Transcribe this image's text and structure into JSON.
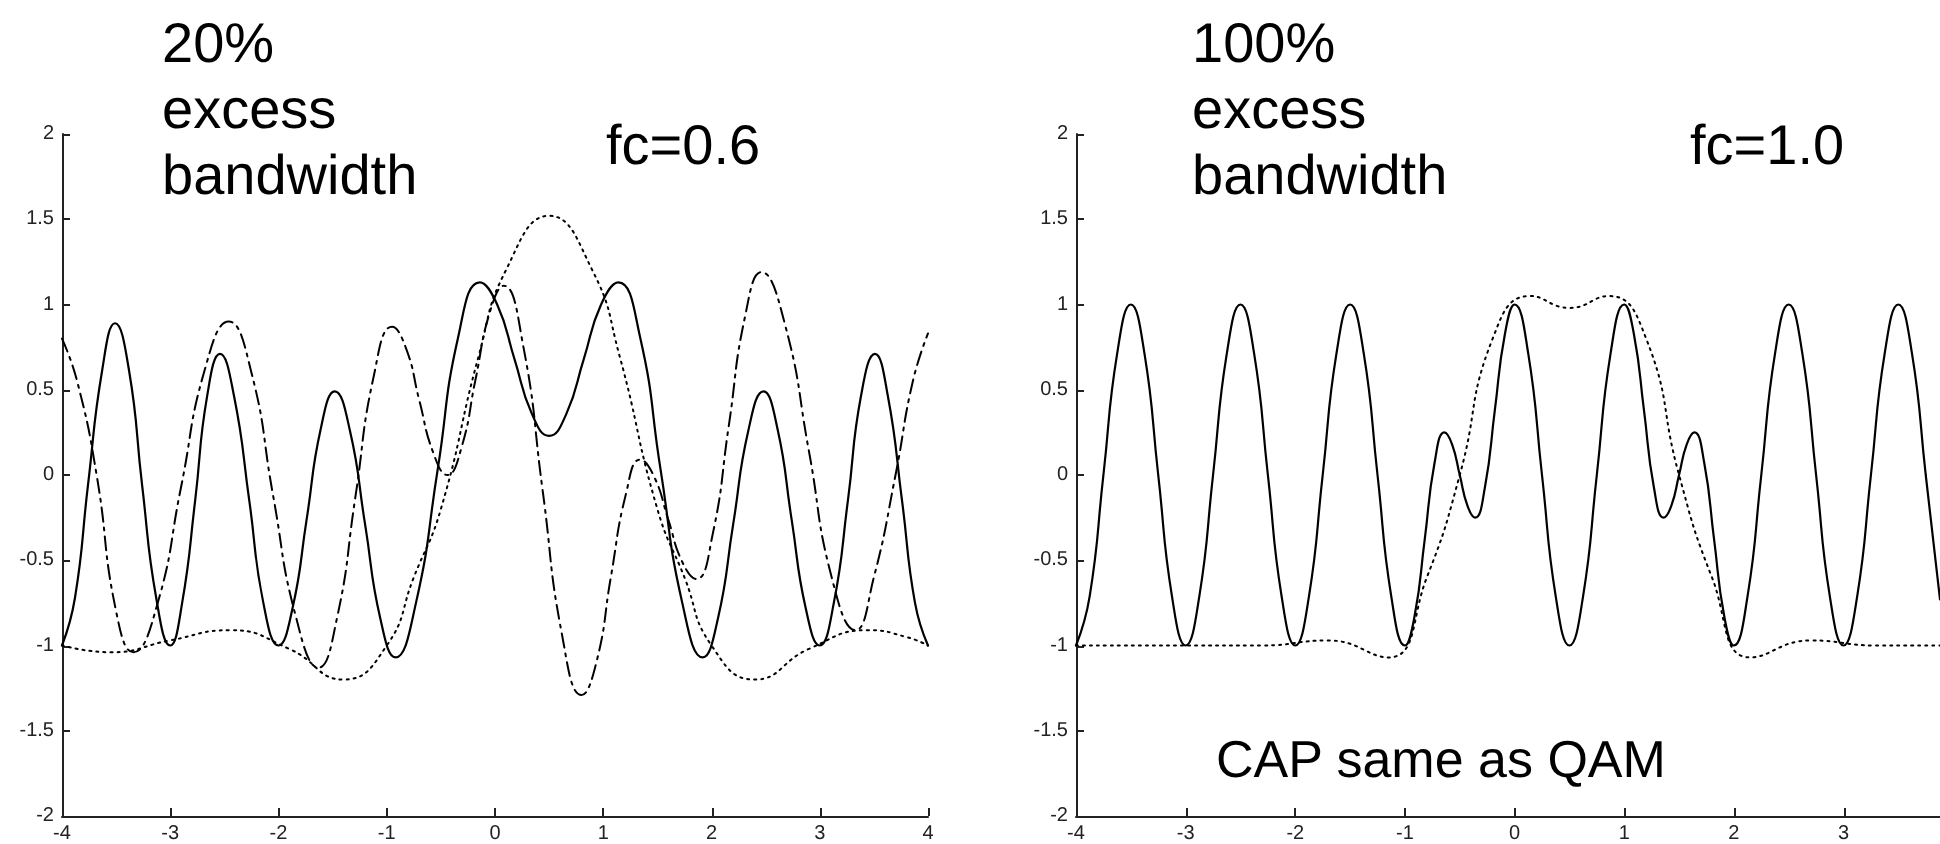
{
  "chart_data": [
    {
      "type": "line",
      "annotations": [
        "20% excess bandwidth",
        "fc=0.6"
      ],
      "xlim": [
        -4,
        4
      ],
      "ylim": [
        -2,
        2
      ],
      "xticks": [
        -4,
        -3,
        -2,
        -1,
        0,
        1,
        2,
        3,
        4
      ],
      "yticks": [
        -2,
        -1.5,
        -1,
        -0.5,
        0,
        0.5,
        1,
        1.5,
        2
      ],
      "series": [
        {
          "color": "#000000",
          "line_style": "solid",
          "x": [
            -4,
            -3.88,
            -3.76,
            -3.63,
            -3.51,
            -3.38,
            -3.26,
            -3.13,
            -3,
            -2.89,
            -2.77,
            -2.66,
            -2.54,
            -2.41,
            -2.27,
            -2.14,
            -2,
            -1.87,
            -1.74,
            -1.61,
            -1.48,
            -1.34,
            -1.2,
            -1.06,
            -0.92,
            -0.73,
            -0.53,
            -0.34,
            -0.14,
            0.02,
            0.18,
            0.34,
            0.5,
            0.66,
            0.82,
            0.98,
            1.14,
            1.34,
            1.53,
            1.73,
            1.92,
            2.06,
            2.2,
            2.34,
            2.48,
            2.61,
            2.74,
            2.87,
            3,
            3.13,
            3.26,
            3.38,
            3.51,
            3.63,
            3.76,
            3.88,
            4
          ],
          "values": [
            -1,
            -0.72,
            -0.06,
            0.61,
            0.89,
            0.61,
            -0.06,
            -0.72,
            -1,
            -0.75,
            -0.15,
            0.46,
            0.71,
            0.46,
            -0.15,
            -0.75,
            -1,
            -0.78,
            -0.26,
            0.27,
            0.49,
            0.26,
            -0.29,
            -0.84,
            -1.07,
            -0.75,
            0.03,
            0.81,
            1.13,
            1,
            0.68,
            0.36,
            0.23,
            0.36,
            0.68,
            1,
            1.13,
            0.81,
            0.03,
            -0.75,
            -1.07,
            -0.84,
            -0.29,
            0.26,
            0.49,
            0.27,
            -0.26,
            -0.78,
            -1,
            -0.75,
            -0.15,
            0.46,
            0.71,
            0.46,
            -0.15,
            -0.75,
            -1
          ]
        },
        {
          "color": "#000000",
          "line_style": "dashdot",
          "x": [
            -4,
            -3.86,
            -3.68,
            -3.5,
            -3.34,
            -3.12,
            -2.9,
            -2.68,
            -2.46,
            -2.25,
            -2.05,
            -1.84,
            -1.63,
            -1.46,
            -1.29,
            -1.12,
            -0.95,
            -0.82,
            -0.7,
            -0.57,
            -0.44,
            -0.31,
            -0.18,
            -0.05,
            0.08,
            0.26,
            0.44,
            0.62,
            0.8,
            0.94,
            1.07,
            1.21,
            1.34,
            1.47,
            1.6,
            1.73,
            1.86,
            2.01,
            2.16,
            2.31,
            2.46,
            2.68,
            2.9,
            3.11,
            3.33,
            3.5,
            3.7,
            3.86,
            4
          ],
          "values": [
            0.8,
            0.55,
            0,
            -0.8,
            -1.04,
            -0.76,
            -0.07,
            0.62,
            0.9,
            0.6,
            -0.12,
            -0.83,
            -1.13,
            -0.84,
            -0.13,
            0.58,
            0.87,
            0.74,
            0.44,
            0.13,
            0,
            0.16,
            0.56,
            0.95,
            1.11,
            0.76,
            -0.09,
            -0.94,
            -1.29,
            -1.09,
            -0.6,
            -0.11,
            0.09,
            -0.01,
            -0.26,
            -0.51,
            -0.61,
            -0.35,
            0.29,
            0.93,
            1.19,
            0.88,
            0.14,
            -0.6,
            -0.91,
            -0.6,
            0,
            0.55,
            0.83
          ]
        },
        {
          "color": "#000000",
          "line_style": "dotted",
          "x": [
            -4,
            -3.55,
            -3,
            -2.45,
            -1.9,
            -1.4,
            -1,
            -0.75,
            -0.5,
            -0.15,
            0.1,
            0.5,
            0.9,
            1.15,
            1.5,
            1.75,
            2,
            2.4,
            2.9,
            3.45,
            3.8,
            4
          ],
          "values": [
            -1,
            -1.04,
            -0.97,
            -0.91,
            -1.02,
            -1.2,
            -1,
            -0.6,
            -0.2,
            0.7,
            1.2,
            1.52,
            1.2,
            0.7,
            -0.2,
            -0.6,
            -1,
            -1.2,
            -1.02,
            -0.91,
            -0.95,
            -1
          ]
        }
      ]
    },
    {
      "type": "line",
      "annotations": [
        "100% excess bandwidth",
        "fc=1.0",
        "CAP same as QAM"
      ],
      "xlim": [
        -4,
        3.88
      ],
      "ylim": [
        -2,
        2
      ],
      "xticks": [
        -4,
        -3,
        -2,
        -1,
        0,
        1,
        2,
        3
      ],
      "yticks": [
        -2,
        -1.5,
        -1,
        -0.5,
        0,
        0.5,
        1,
        1.5,
        2
      ],
      "series": [
        {
          "color": "#000000",
          "line_style": "solid",
          "x": [
            -4,
            -3.875,
            -3.75,
            -3.625,
            -3.5,
            -3.375,
            -3.25,
            -3.125,
            -3,
            -2.875,
            -2.75,
            -2.625,
            -2.5,
            -2.375,
            -2.25,
            -2.125,
            -2,
            -1.875,
            -1.75,
            -1.625,
            -1.5,
            -1.375,
            -1.25,
            -1.125,
            -1,
            -0.91,
            -0.82,
            -0.73,
            -0.64,
            -0.57,
            -0.5,
            -0.43,
            -0.36,
            -0.27,
            -0.18,
            -0.09,
            0,
            0.125,
            0.25,
            0.375,
            0.5,
            0.625,
            0.75,
            0.875,
            1,
            1.09,
            1.18,
            1.27,
            1.36,
            1.43,
            1.5,
            1.57,
            1.64,
            1.73,
            1.82,
            1.91,
            2,
            2.125,
            2.25,
            2.375,
            2.5,
            2.625,
            2.75,
            2.875,
            3,
            3.125,
            3.25,
            3.375,
            3.5,
            3.625,
            3.75,
            3.88
          ],
          "values": [
            -1,
            -0.71,
            0,
            0.71,
            1,
            0.71,
            0,
            -0.71,
            -1,
            -0.71,
            0,
            0.71,
            1,
            0.71,
            0,
            -0.71,
            -1,
            -0.71,
            0,
            0.71,
            1,
            0.71,
            0,
            -0.71,
            -1,
            -0.82,
            -0.38,
            0.07,
            0.25,
            0.18,
            0,
            -0.18,
            -0.25,
            -0.07,
            0.38,
            0.82,
            1,
            0.71,
            0,
            -0.71,
            -1,
            -0.71,
            0,
            0.71,
            1,
            0.82,
            0.38,
            -0.07,
            -0.25,
            -0.18,
            0,
            0.18,
            0.25,
            0.07,
            -0.38,
            -0.82,
            -1,
            -0.71,
            0,
            0.71,
            1,
            0.71,
            0,
            -0.71,
            -1,
            -0.71,
            0,
            0.71,
            1,
            0.71,
            0,
            -0.73
          ]
        },
        {
          "color": "#000000",
          "line_style": "dotted",
          "x": [
            -4,
            -3,
            -2.3,
            -1.7,
            -1.15,
            -0.8,
            -0.5,
            -0.2,
            0.14,
            0.5,
            0.86,
            1.2,
            1.5,
            1.8,
            2.15,
            2.7,
            3.3,
            3.88
          ],
          "values": [
            -1,
            -1,
            -1,
            -0.97,
            -1.07,
            -0.6,
            0,
            0.8,
            1.05,
            0.98,
            1.05,
            0.8,
            0,
            -0.6,
            -1.07,
            -0.97,
            -1,
            -1
          ]
        }
      ]
    }
  ]
}
